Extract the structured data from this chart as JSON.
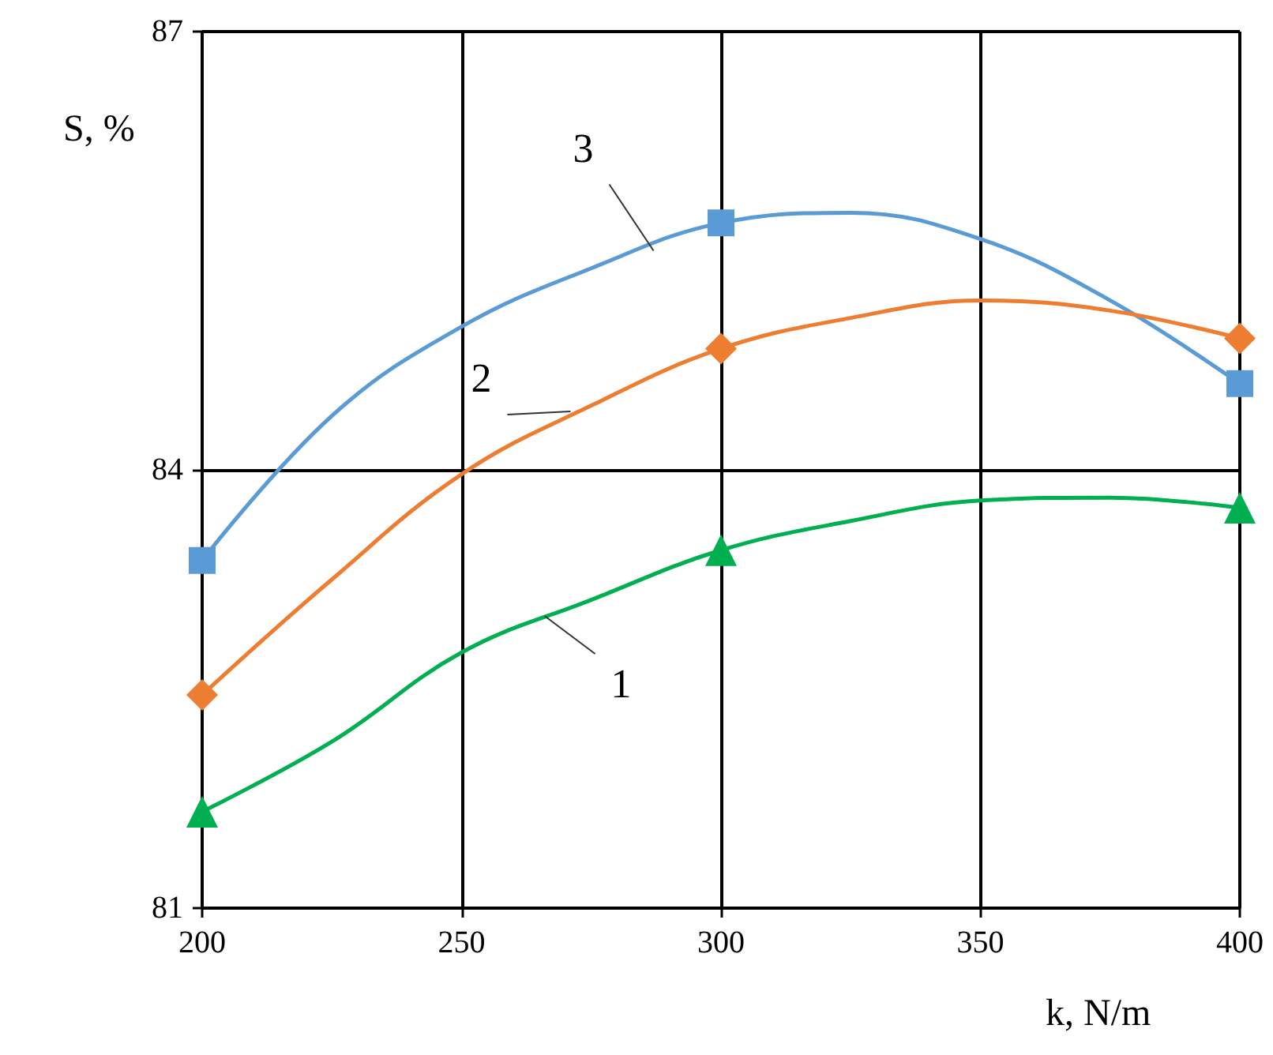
{
  "chart_data": {
    "type": "line",
    "xlabel": "k, N/m",
    "ylabel": "S, %",
    "xlim": [
      200,
      400
    ],
    "xticks": [
      200,
      250,
      300,
      350,
      400
    ],
    "ylim": [
      81,
      87
    ],
    "yticks": [
      81,
      84,
      87
    ],
    "grid": true,
    "series": [
      {
        "color": "#5b9bd5",
        "marker": "none",
        "x": [
          200,
          225,
          250,
          275,
          300,
          325,
          350,
          375,
          400
        ],
        "values": [
          83.38,
          84.37,
          84.98,
          85.38,
          85.69,
          85.76,
          85.58,
          85.16,
          84.59
        ]
      },
      {
        "color": "#ed7d31",
        "marker": "none",
        "x": [
          200,
          225,
          250,
          275,
          300,
          325,
          350,
          375,
          400
        ],
        "values": [
          82.46,
          83.25,
          83.97,
          84.44,
          84.83,
          85.04,
          85.16,
          85.09,
          84.9
        ]
      },
      {
        "color": "#00b050",
        "marker": "none",
        "x": [
          200,
          225,
          250,
          275,
          300,
          325,
          350,
          375,
          400
        ],
        "values": [
          81.66,
          82.14,
          82.75,
          83.11,
          83.45,
          83.65,
          83.79,
          83.81,
          83.74
        ]
      },
      {
        "type": "scatter",
        "color": "#5b9bd5",
        "marker": "square",
        "x": [
          200,
          300,
          400
        ],
        "values": [
          83.38,
          85.69,
          84.59
        ]
      },
      {
        "type": "scatter",
        "color": "#ed7d31",
        "marker": "diamond",
        "x": [
          200,
          300,
          400
        ],
        "values": [
          82.46,
          84.83,
          84.9
        ]
      },
      {
        "type": "scatter",
        "color": "#00b050",
        "marker": "triangle",
        "x": [
          200,
          300,
          400
        ],
        "values": [
          81.66,
          83.45,
          83.74
        ]
      }
    ],
    "annotations": [
      {
        "text": "3",
        "x": 287,
        "y": 85.5
      },
      {
        "text": "2",
        "x": 271,
        "y": 84.4
      },
      {
        "text": "1",
        "x": 266,
        "y": 83.0
      }
    ]
  }
}
